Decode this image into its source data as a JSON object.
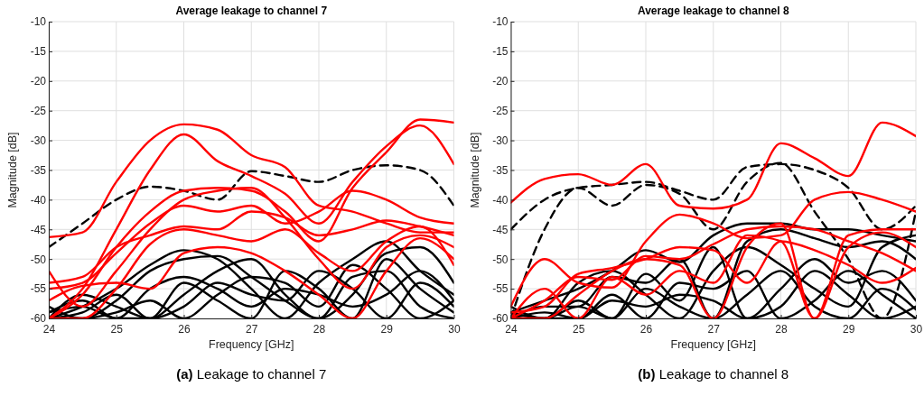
{
  "chart_data": [
    {
      "type": "line",
      "title": "Average leakage to channel 7",
      "xlabel": "Frequency [GHz]",
      "ylabel": "Magnitude [dB]",
      "annotations": [
        "(a) Leakage to channel 7"
      ],
      "x": [
        24,
        24.5,
        25,
        25.5,
        26,
        26.5,
        27,
        27.5,
        28,
        28.5,
        29,
        29.5,
        30
      ],
      "xlim": [
        24,
        30
      ],
      "ylim": [
        -60,
        -10
      ],
      "xticks": [
        24,
        25,
        26,
        27,
        28,
        29,
        30
      ],
      "yticks": [
        -60,
        -55,
        -50,
        -45,
        -40,
        -35,
        -30,
        -25,
        -20,
        -15,
        -10
      ],
      "grid": true,
      "line_style": "solid",
      "series": [
        {
          "color": "#000000",
          "values": [
            -60,
            -58,
            -55,
            -51,
            -48.5,
            -50,
            -55,
            -60,
            -54,
            -50,
            -47,
            -52,
            -56
          ]
        },
        {
          "color": "#000000",
          "values": [
            -58,
            -60,
            -57,
            -52,
            -50,
            -49.5,
            -53,
            -57,
            -60,
            -56,
            -49,
            -48,
            -54
          ]
        },
        {
          "color": "#000000",
          "values": [
            -60,
            -56,
            -58,
            -60,
            -56,
            -52,
            -50,
            -56,
            -60,
            -53,
            -52,
            -58,
            -60
          ]
        },
        {
          "color": "#000000",
          "values": [
            -59,
            -57,
            -60,
            -55,
            -53,
            -55,
            -58,
            -55,
            -56,
            -58,
            -56,
            -52,
            -57
          ]
        },
        {
          "color": "#000000",
          "values": [
            -60,
            -59,
            -56,
            -60,
            -58,
            -54,
            -56,
            -57,
            -52,
            -55,
            -60,
            -54,
            -58
          ]
        },
        {
          "color": "#000000",
          "values": [
            -60,
            -60,
            -59,
            -57,
            -60,
            -56,
            -53,
            -54,
            -58,
            -51,
            -55,
            -60,
            -57
          ]
        },
        {
          "color": "#000000",
          "values": [
            -59,
            -58,
            -60,
            -60,
            -54,
            -57,
            -60,
            -52,
            -55,
            -60,
            -50,
            -55,
            -59
          ]
        },
        {
          "color": "#000000",
          "line_style": "dashed",
          "values": [
            -48,
            -44,
            -40,
            -37.8,
            -38.5,
            -40,
            -35.2,
            -36,
            -37,
            -35,
            -34.2,
            -35,
            -41
          ]
        },
        {
          "color": "#ff0000",
          "values": [
            -46.3,
            -45.5,
            -37,
            -30,
            -27.3,
            -28.2,
            -32.5,
            -34.5,
            -41,
            -42,
            -44,
            -45.5,
            -45.5
          ]
        },
        {
          "color": "#ff0000",
          "values": [
            -60,
            -55,
            -45,
            -35,
            -29,
            -33.5,
            -36,
            -39,
            -44,
            -37,
            -31,
            -27.5,
            -34
          ]
        },
        {
          "color": "#ff0000",
          "values": [
            -60,
            -56,
            -48,
            -42,
            -38.5,
            -38,
            -38.5,
            -42,
            -47,
            -38,
            -32,
            -26.5,
            -27
          ]
        },
        {
          "color": "#ff0000",
          "values": [
            -52,
            -58,
            -52,
            -45,
            -40,
            -38.5,
            -38,
            -43,
            -50,
            -55,
            -48,
            -46,
            -48
          ]
        },
        {
          "color": "#ff0000",
          "values": [
            -55,
            -54,
            -49,
            -44,
            -41,
            -42,
            -41,
            -44,
            -42,
            -38.5,
            -40,
            -43,
            -44
          ]
        },
        {
          "color": "#ff0000",
          "values": [
            -54,
            -53,
            -48,
            -46,
            -44.5,
            -45,
            -42,
            -43,
            -46,
            -45,
            -43.5,
            -44.5,
            -46
          ]
        },
        {
          "color": "#ff0000",
          "values": [
            -60,
            -60,
            -55,
            -47.5,
            -45,
            -46,
            -47,
            -45,
            -49,
            -52,
            -47,
            -44.5,
            -51
          ]
        },
        {
          "color": "#ff0000",
          "values": [
            -57,
            -54.5,
            -54,
            -55,
            -49,
            -48,
            -49,
            -52,
            -56,
            -60,
            -52,
            -46.5,
            -50
          ]
        }
      ]
    },
    {
      "type": "line",
      "title": "Average leakage to channel 8",
      "xlabel": "Frequency [GHz]",
      "ylabel": "Magnitude [dB]",
      "annotations": [
        "(b) Leakage to channel 8"
      ],
      "x": [
        24,
        24.5,
        25,
        25.5,
        26,
        26.5,
        27,
        27.5,
        28,
        28.5,
        29,
        29.5,
        30
      ],
      "xlim": [
        24,
        30
      ],
      "ylim": [
        -60,
        -10
      ],
      "xticks": [
        24,
        25,
        26,
        27,
        28,
        29,
        30
      ],
      "yticks": [
        -60,
        -55,
        -50,
        -45,
        -40,
        -35,
        -30,
        -25,
        -20,
        -15,
        -10
      ],
      "grid": true,
      "line_style": "solid",
      "series": [
        {
          "color": "#000000",
          "values": [
            -59,
            -57,
            -55,
            -52,
            -48.5,
            -50.5,
            -46,
            -44,
            -44,
            -45,
            -45,
            -46,
            -47
          ]
        },
        {
          "color": "#000000",
          "values": [
            -60,
            -58,
            -58,
            -53,
            -54,
            -50,
            -60,
            -47,
            -45,
            -46.5,
            -48,
            -47,
            -50
          ]
        },
        {
          "color": "#000000",
          "values": [
            -60,
            -60,
            -54,
            -52,
            -56,
            -60,
            -52,
            -48,
            -51,
            -55,
            -58,
            -48,
            -46
          ]
        },
        {
          "color": "#000000",
          "values": [
            -59,
            -60,
            -57,
            -60,
            -52.5,
            -57,
            -48,
            -60,
            -55,
            -50,
            -54,
            -52,
            -57
          ]
        },
        {
          "color": "#000000",
          "values": [
            -60,
            -59,
            -60,
            -56,
            -60,
            -54,
            -55,
            -52,
            -60,
            -57,
            -52,
            -56,
            -60
          ]
        },
        {
          "color": "#000000",
          "values": [
            -60,
            -60,
            -58,
            -60,
            -55,
            -58,
            -60,
            -56,
            -52,
            -58,
            -60,
            -55,
            -58.5
          ]
        },
        {
          "color": "#000000",
          "values": [
            -58,
            -60,
            -60,
            -57,
            -58,
            -56,
            -57,
            -60,
            -58,
            -52,
            -56,
            -60,
            -58
          ]
        },
        {
          "color": "#000000",
          "line_style": "dashed",
          "values": [
            -45,
            -40,
            -38,
            -37.5,
            -37,
            -38.5,
            -40,
            -34.5,
            -34,
            -35,
            -38,
            -45,
            -41
          ]
        },
        {
          "color": "#000000",
          "line_style": "dashed",
          "values": [
            -60,
            -45,
            -38,
            -41,
            -37.5,
            -39,
            -45,
            -37,
            -33.8,
            -42,
            -50,
            -60,
            -42
          ]
        },
        {
          "color": "#ff0000",
          "values": [
            -40.5,
            -36.5,
            -35.7,
            -37.5,
            -34,
            -41,
            -41.5,
            -40,
            -30.5,
            -33,
            -36,
            -27,
            -29.3
          ]
        },
        {
          "color": "#ff0000",
          "values": [
            -58,
            -50,
            -54,
            -54.8,
            -47,
            -42.5,
            -44,
            -46.5,
            -46,
            -40,
            -38.7,
            -40,
            -42
          ]
        },
        {
          "color": "#ff0000",
          "values": [
            -60,
            -57,
            -53,
            -53.5,
            -49.5,
            -50,
            -47.5,
            -45,
            -44.5,
            -45,
            -47,
            -49,
            -52
          ]
        },
        {
          "color": "#ff0000",
          "values": [
            -59,
            -58,
            -52.5,
            -51.5,
            -50,
            -48,
            -48.5,
            -54,
            -47,
            -48.5,
            -51,
            -54,
            -51.5
          ]
        },
        {
          "color": "#ff0000",
          "values": [
            -60,
            -60,
            -56,
            -52,
            -50,
            -51,
            -60,
            -48,
            -44,
            -60,
            -46,
            -45,
            -45
          ]
        },
        {
          "color": "#ff0000",
          "values": [
            -60,
            -55,
            -60,
            -53,
            -56,
            -52,
            -54,
            -46,
            -47,
            -60,
            -48,
            -45.5,
            -48
          ]
        }
      ]
    }
  ]
}
